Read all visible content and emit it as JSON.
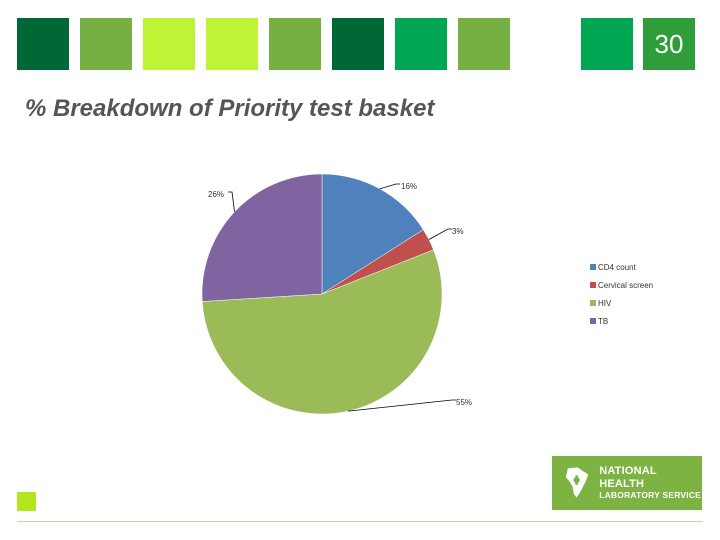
{
  "slide": {
    "number": "30",
    "title": "% Breakdown of Priority test basket"
  },
  "header_tiles": [
    "#006837",
    "#76b043",
    "#bef336",
    "#bef336",
    "#76b043",
    "#006837",
    "#00a651",
    "#76b043",
    "#00a651"
  ],
  "logo": {
    "line1": "NATIONAL HEALTH",
    "line2": "LABORATORY SERVICE",
    "icon": "nhls-africa-logo"
  },
  "chart_data": {
    "type": "pie",
    "categories": [
      "CD4 count",
      "Cervical screen",
      "HIV",
      "TB"
    ],
    "values": [
      16,
      3,
      55,
      26
    ],
    "labels": [
      "16%",
      "3%",
      "55%",
      "26%"
    ],
    "colors": [
      "#4f81bd",
      "#c0504d",
      "#9bbb59",
      "#8064a2"
    ],
    "legend_position": "right"
  }
}
